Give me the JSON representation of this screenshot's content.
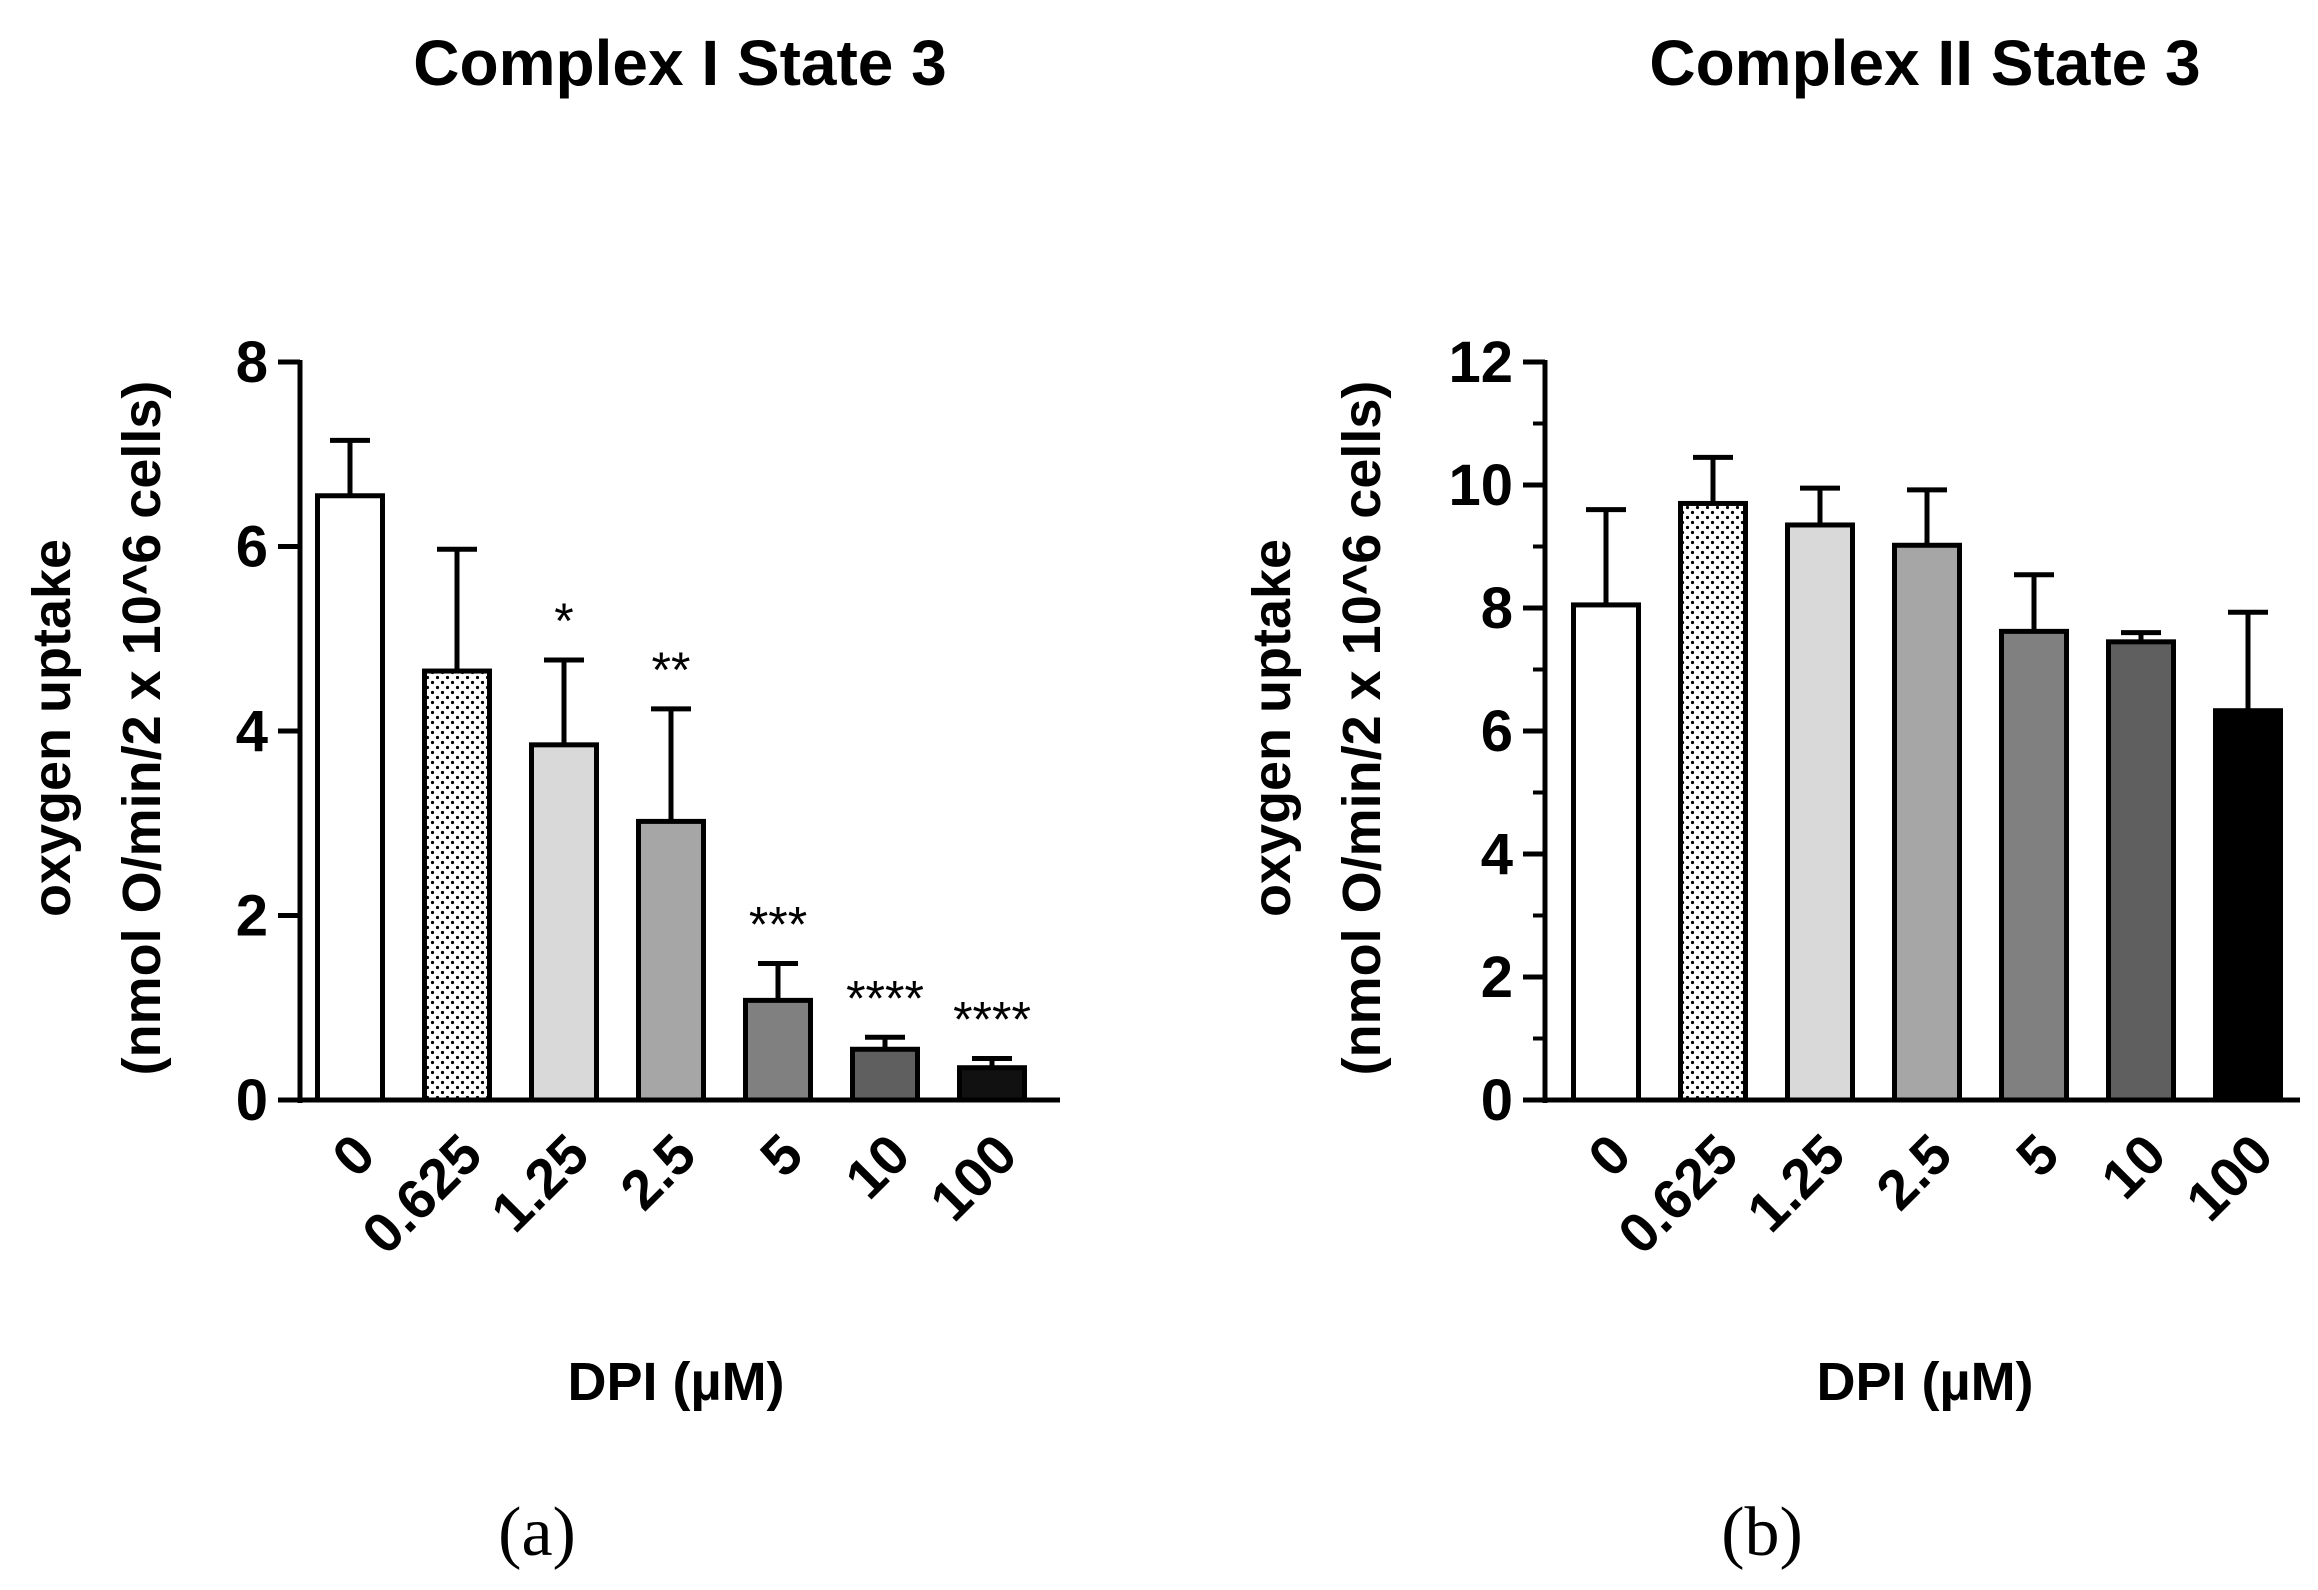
{
  "chart_data": [
    {
      "type": "bar",
      "title": "Complex I State 3",
      "panel_label": "(a)",
      "xlabel": "DPI (µM)",
      "ylabel_line1": "oxygen uptake",
      "ylabel_line2": "(nmol O/min/2 x 10^6 cells)",
      "categories": [
        "0",
        "0.625",
        "1.25",
        "2.5",
        "5",
        "10",
        "100"
      ],
      "values": [
        6.55,
        4.65,
        3.85,
        3.02,
        1.08,
        0.55,
        0.35
      ],
      "errors": [
        0.6,
        1.32,
        0.92,
        1.22,
        0.4,
        0.13,
        0.1
      ],
      "significance": [
        "",
        "",
        "*",
        "**",
        "***",
        "****",
        "****"
      ],
      "ylim": [
        0,
        8
      ],
      "yticks": [
        0,
        2,
        4,
        6,
        8
      ],
      "minor_ticks": false,
      "bar_fills": [
        "#ffffff",
        "dots",
        "#d9d9d9",
        "#a6a6a6",
        "#808080",
        "#5f5f5f",
        "#111111"
      ]
    },
    {
      "type": "bar",
      "title": "Complex II State 3",
      "panel_label": "(b)",
      "xlabel": "DPI (µM)",
      "ylabel_line1": "oxygen uptake",
      "ylabel_line2": "(nmol O/min/2 x 10^6 cells)",
      "categories": [
        "0",
        "0.625",
        "1.25",
        "2.5",
        "5",
        "10",
        "100"
      ],
      "values": [
        8.05,
        9.7,
        9.35,
        9.02,
        7.62,
        7.45,
        6.33
      ],
      "errors": [
        1.55,
        0.75,
        0.6,
        0.9,
        0.92,
        0.15,
        1.6
      ],
      "significance": [
        "",
        "",
        "",
        "",
        "",
        "",
        ""
      ],
      "ylim": [
        0,
        12
      ],
      "yticks": [
        0,
        2,
        4,
        6,
        8,
        10,
        12
      ],
      "minor_ticks": true,
      "bar_fills": [
        "#ffffff",
        "dots",
        "#d9d9d9",
        "#a6a6a6",
        "#808080",
        "#5f5f5f",
        "#000000"
      ]
    }
  ]
}
